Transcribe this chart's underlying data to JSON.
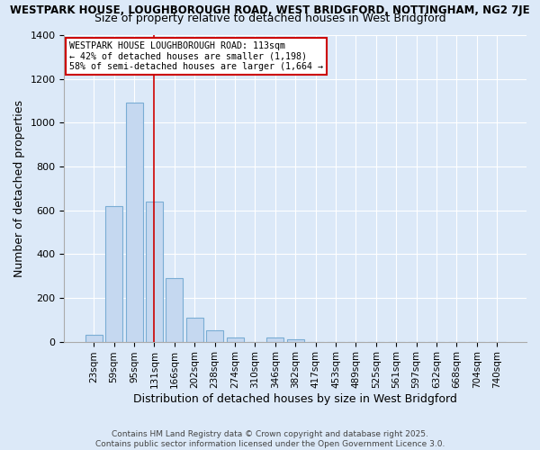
{
  "title_line1": "WESTPARK HOUSE, LOUGHBOROUGH ROAD, WEST BRIDGFORD, NOTTINGHAM, NG2 7JE",
  "title_line2": "Size of property relative to detached houses in West Bridgford",
  "xlabel": "Distribution of detached houses by size in West Bridgford",
  "ylabel": "Number of detached properties",
  "categories": [
    "23sqm",
    "59sqm",
    "95sqm",
    "131sqm",
    "166sqm",
    "202sqm",
    "238sqm",
    "274sqm",
    "310sqm",
    "346sqm",
    "382sqm",
    "417sqm",
    "453sqm",
    "489sqm",
    "525sqm",
    "561sqm",
    "597sqm",
    "632sqm",
    "668sqm",
    "704sqm",
    "740sqm"
  ],
  "values": [
    30,
    620,
    1090,
    640,
    290,
    110,
    50,
    20,
    0,
    20,
    10,
    0,
    0,
    0,
    0,
    0,
    0,
    0,
    0,
    0,
    0
  ],
  "bar_color": "#c5d8f0",
  "bar_edge_color": "#7aadd4",
  "vline_index": 3,
  "annotation_line1": "WESTPARK HOUSE LOUGHBOROUGH ROAD: 113sqm",
  "annotation_line2": "← 42% of detached houses are smaller (1,198)",
  "annotation_line3": "58% of semi-detached houses are larger (1,664 →",
  "annotation_box_color": "#ffffff",
  "annotation_box_edge_color": "#cc0000",
  "vline_color": "#cc0000",
  "background_color": "#dce9f8",
  "plot_bg_color": "#dce9f8",
  "ylim": [
    0,
    1400
  ],
  "yticks": [
    0,
    200,
    400,
    600,
    800,
    1000,
    1200,
    1400
  ],
  "footer_line1": "Contains HM Land Registry data © Crown copyright and database right 2025.",
  "footer_line2": "Contains public sector information licensed under the Open Government Licence 3.0.",
  "title_fontsize": 8.5,
  "subtitle_fontsize": 9,
  "bar_width": 0.85
}
